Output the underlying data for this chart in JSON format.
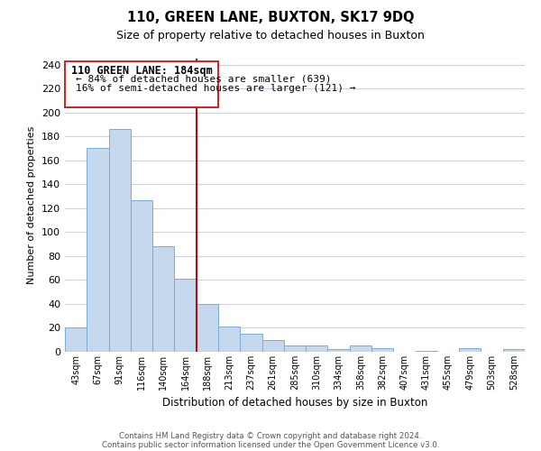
{
  "title": "110, GREEN LANE, BUXTON, SK17 9DQ",
  "subtitle": "Size of property relative to detached houses in Buxton",
  "xlabel": "Distribution of detached houses by size in Buxton",
  "ylabel": "Number of detached properties",
  "bar_color": "#c5d8ed",
  "bar_edge_color": "#7aaed6",
  "categories": [
    "43sqm",
    "67sqm",
    "91sqm",
    "116sqm",
    "140sqm",
    "164sqm",
    "188sqm",
    "213sqm",
    "237sqm",
    "261sqm",
    "285sqm",
    "310sqm",
    "334sqm",
    "358sqm",
    "382sqm",
    "407sqm",
    "431sqm",
    "455sqm",
    "479sqm",
    "503sqm",
    "528sqm"
  ],
  "values": [
    20,
    170,
    186,
    127,
    88,
    61,
    40,
    21,
    15,
    10,
    5,
    5,
    2,
    5,
    3,
    0,
    1,
    0,
    3,
    0,
    2
  ],
  "ylim": [
    0,
    245
  ],
  "yticks": [
    0,
    20,
    40,
    60,
    80,
    100,
    120,
    140,
    160,
    180,
    200,
    220,
    240
  ],
  "vline_idx": 6,
  "vline_color": "#aa1111",
  "annotation_title": "110 GREEN LANE: 184sqm",
  "annotation_line1": "← 84% of detached houses are smaller (639)",
  "annotation_line2": "16% of semi-detached houses are larger (121) →",
  "footer_line1": "Contains HM Land Registry data © Crown copyright and database right 2024.",
  "footer_line2": "Contains public sector information licensed under the Open Government Licence v3.0.",
  "background_color": "#ffffff",
  "grid_color": "#c8d4e4"
}
